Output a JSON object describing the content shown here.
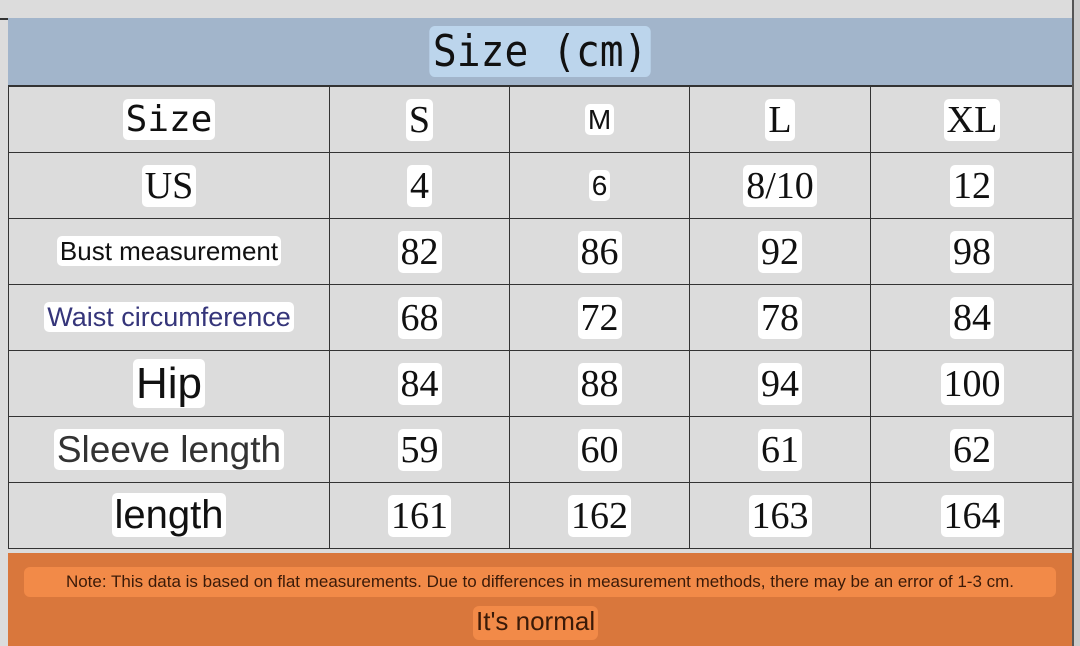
{
  "title": "Size (cm)",
  "columns": [
    "Size",
    "S",
    "M",
    "L",
    "XL"
  ],
  "rows": [
    {
      "label": "US",
      "values": [
        "4",
        "6",
        "8/10",
        "12"
      ]
    },
    {
      "label": "Bust measurement",
      "values": [
        "82",
        "86",
        "92",
        "98"
      ]
    },
    {
      "label": "Waist circumference",
      "values": [
        "68",
        "72",
        "78",
        "84"
      ]
    },
    {
      "label": "Hip",
      "values": [
        "84",
        "88",
        "94",
        "100"
      ]
    },
    {
      "label": "Sleeve length",
      "values": [
        "59",
        "60",
        "61",
        "62"
      ]
    },
    {
      "label": "length",
      "values": [
        "161",
        "162",
        "163",
        "164"
      ]
    }
  ],
  "note": "Note: This data is based on flat measurements. Due to differences in measurement methods, there may be an error of 1-3 cm.",
  "note2": "It's normal",
  "colors": {
    "title_bg": "#a2b5cb",
    "note_bg": "#d9773c",
    "note_highlight": "#f28a48"
  }
}
